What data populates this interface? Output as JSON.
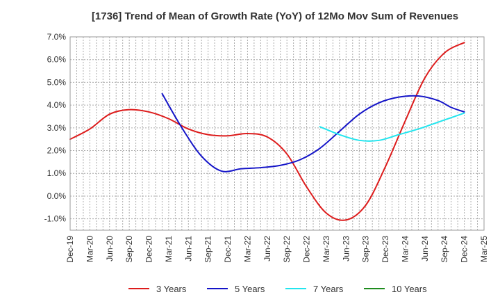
{
  "chart_data": {
    "type": "line",
    "title": "[1736]  Trend of Mean of Growth Rate (YoY) of 12Mo Mov Sum of Revenues",
    "xlabel": "",
    "ylabel": "",
    "ylim": [
      -1.5,
      7.0
    ],
    "y_ticks": [
      -1.0,
      0.0,
      1.0,
      2.0,
      3.0,
      4.0,
      5.0,
      6.0,
      7.0
    ],
    "y_tick_labels": [
      "-1.0%",
      "0.0%",
      "1.0%",
      "2.0%",
      "3.0%",
      "4.0%",
      "5.0%",
      "6.0%",
      "7.0%"
    ],
    "x_tick_labels": [
      "Dec-19",
      "Mar-20",
      "Jun-20",
      "Sep-20",
      "Dec-20",
      "Mar-21",
      "Jun-21",
      "Sep-21",
      "Dec-21",
      "Mar-22",
      "Jun-22",
      "Sep-22",
      "Dec-22",
      "Mar-23",
      "Jun-23",
      "Sep-23",
      "Dec-23",
      "Mar-24",
      "Jun-24",
      "Sep-24",
      "Dec-24",
      "Mar-25"
    ],
    "grid": true,
    "legend_position": "bottom",
    "series": [
      {
        "name": "3 Years",
        "color": "#dd1c1c",
        "points": [
          [
            0,
            2.5
          ],
          [
            1,
            2.95
          ],
          [
            2,
            3.6
          ],
          [
            3,
            3.8
          ],
          [
            4,
            3.7
          ],
          [
            5,
            3.4
          ],
          [
            6,
            2.95
          ],
          [
            7,
            2.7
          ],
          [
            8,
            2.65
          ],
          [
            9,
            2.75
          ],
          [
            10,
            2.6
          ],
          [
            11,
            1.85
          ],
          [
            12,
            0.4
          ],
          [
            13,
            -0.75
          ],
          [
            14,
            -1.05
          ],
          [
            15,
            -0.4
          ],
          [
            16,
            1.3
          ],
          [
            17,
            3.3
          ],
          [
            18,
            5.2
          ],
          [
            19,
            6.3
          ],
          [
            20,
            6.75
          ]
        ]
      },
      {
        "name": "5 Years",
        "color": "#1414c8",
        "points": [
          [
            4.67,
            4.5
          ],
          [
            5.67,
            3.0
          ],
          [
            6.67,
            1.75
          ],
          [
            7.67,
            1.1
          ],
          [
            8.67,
            1.2
          ],
          [
            9.67,
            1.25
          ],
          [
            10.67,
            1.35
          ],
          [
            11.67,
            1.6
          ],
          [
            12.67,
            2.1
          ],
          [
            13.67,
            2.85
          ],
          [
            14.67,
            3.6
          ],
          [
            15.67,
            4.1
          ],
          [
            16.67,
            4.35
          ],
          [
            17.67,
            4.4
          ],
          [
            18.67,
            4.2
          ],
          [
            19.33,
            3.9
          ],
          [
            20,
            3.7
          ]
        ]
      },
      {
        "name": "7 Years",
        "color": "#22e5ee",
        "points": [
          [
            12.67,
            3.05
          ],
          [
            13.67,
            2.7
          ],
          [
            14.67,
            2.45
          ],
          [
            15.67,
            2.45
          ],
          [
            16.67,
            2.7
          ],
          [
            17.67,
            2.95
          ],
          [
            18.67,
            3.25
          ],
          [
            20,
            3.65
          ]
        ]
      },
      {
        "name": "10 Years",
        "color": "#1e8c1e",
        "points": []
      }
    ]
  }
}
